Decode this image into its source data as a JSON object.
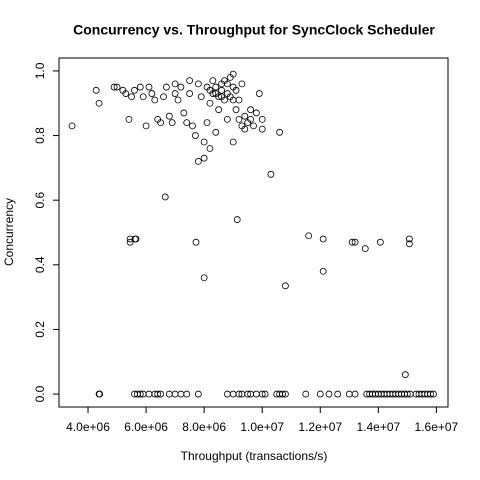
{
  "chart_data": {
    "type": "scatter",
    "title": "Concurrency vs. Throughput for SyncClock Scheduler",
    "x_label": "Throughput (transactions/s)",
    "y_label": "Concurrency",
    "color": "#000000",
    "xlim": [
      3000000.0,
      16400000.0
    ],
    "ylim": [
      -0.04,
      1.04
    ],
    "xticks": [
      {
        "value": 4000000.0,
        "label": "4.0e+06"
      },
      {
        "value": 6000000.0,
        "label": "6.0e+06"
      },
      {
        "value": 8000000.0,
        "label": "8.0e+06"
      },
      {
        "value": 10000000.0,
        "label": "1.0e+07"
      },
      {
        "value": 12000000.0,
        "label": "1.2e+07"
      },
      {
        "value": 14000000.0,
        "label": "1.4e+07"
      },
      {
        "value": 16000000.0,
        "label": "1.6e+07"
      }
    ],
    "yticks": [
      {
        "value": 0,
        "label": "0.0"
      },
      0.2,
      0.4,
      0.6,
      0.8,
      {
        "value": 1,
        "label": "1.0"
      }
    ],
    "x": [
      3450000.0,
      4280000.0,
      4380000.0,
      4380000.0,
      5410000.0,
      5450000.0,
      5450000.0,
      5620000.0,
      5650000.0,
      6660000.0,
      7720000.0,
      8000000.0,
      9140000.0,
      10300000.0,
      10600000.0,
      10800000.0,
      11600000.0,
      12100000.0,
      12100000.0,
      13100000.0,
      13200000.0,
      13550000.0,
      14070000.0,
      15070000.0,
      15070000.0,
      14930000.0,
      4900000.0,
      5000000.0,
      5200000.0,
      5300000.0,
      5500000.0,
      5600000.0,
      5800000.0,
      5900000.0,
      6000000.0,
      6100000.0,
      6200000.0,
      6300000.0,
      6400000.0,
      6500000.0,
      6600000.0,
      6700000.0,
      6800000.0,
      6900000.0,
      7000000.0,
      7000000.0,
      7100000.0,
      7200000.0,
      7300000.0,
      7400000.0,
      7500000.0,
      7500000.0,
      7600000.0,
      7700000.0,
      7800000.0,
      7800000.0,
      7900000.0,
      8000000.0,
      8000000.0,
      8100000.0,
      8100000.0,
      8200000.0,
      8200000.0,
      8300000.0,
      8300000.0,
      8400000.0,
      8400000.0,
      8500000.0,
      8500000.0,
      8600000.0,
      8600000.0,
      8700000.0,
      8700000.0,
      8800000.0,
      8800000.0,
      8900000.0,
      8900000.0,
      9000000.0,
      9000000.0,
      9000000.0,
      9100000.0,
      9100000.0,
      9200000.0,
      9200000.0,
      9300000.0,
      9300000.0,
      9400000.0,
      9500000.0,
      9600000.0,
      9700000.0,
      9800000.0,
      9900000.0,
      10000000.0,
      10000000.0,
      8400000.0,
      8600000.0,
      8800000.0,
      9000000.0,
      8200000.0,
      9400000.0,
      9600000.0,
      4400000.0,
      5600000.0,
      5700000.0,
      5800000.0,
      5900000.0,
      6100000.0,
      6300000.0,
      6400000.0,
      6500000.0,
      6800000.0,
      7000000.0,
      7200000.0,
      7400000.0,
      7800000.0,
      8800000.0,
      9000000.0,
      9200000.0,
      9300000.0,
      9500000.0,
      9600000.0,
      9800000.0,
      10000000.0,
      10100000.0,
      10500000.0,
      10600000.0,
      10700000.0,
      10800000.0,
      11500000.0,
      12000000.0,
      12300000.0,
      12600000.0,
      13000000.0,
      13200000.0,
      13600000.0,
      13700000.0,
      13800000.0,
      13900000.0,
      14000000.0,
      14100000.0,
      14200000.0,
      14300000.0,
      14400000.0,
      14500000.0,
      14600000.0,
      14700000.0,
      14800000.0,
      14900000.0,
      15000000.0,
      15100000.0,
      15300000.0,
      15400000.0,
      15500000.0,
      15600000.0,
      15700000.0,
      15800000.0,
      15900000.0
    ],
    "values": [
      0.83,
      0.94,
      0.9,
      0,
      0.85,
      0.48,
      0.47,
      0.48,
      0.48,
      0.61,
      0.47,
      0.36,
      0.54,
      0.68,
      0.81,
      0.335,
      0.49,
      0.48,
      0.38,
      0.47,
      0.47,
      0.45,
      0.47,
      0.48,
      0.465,
      0.06,
      0.95,
      0.95,
      0.94,
      0.93,
      0.92,
      0.94,
      0.95,
      0.92,
      0.83,
      0.95,
      0.93,
      0.91,
      0.85,
      0.84,
      0.92,
      0.95,
      0.86,
      0.84,
      0.96,
      0.93,
      0.91,
      0.95,
      0.87,
      0.84,
      0.97,
      0.93,
      0.83,
      0.8,
      0.72,
      0.96,
      0.92,
      0.73,
      0.78,
      0.84,
      0.95,
      0.76,
      0.9,
      0.93,
      0.97,
      0.81,
      0.95,
      0.92,
      0.88,
      0.96,
      0.94,
      0.91,
      0.97,
      0.93,
      0.85,
      0.98,
      0.92,
      0.95,
      0.99,
      0.78,
      0.88,
      0.94,
      0.85,
      0.91,
      0.83,
      0.96,
      0.86,
      0.84,
      0.85,
      0.83,
      0.87,
      0.93,
      0.82,
      0.85,
      0.93,
      0.92,
      0.96,
      0.91,
      0.94,
      0.82,
      0.88,
      0,
      0,
      0,
      0,
      0,
      0,
      0,
      0,
      0,
      0,
      0,
      0,
      0,
      0,
      0,
      0,
      0,
      0,
      0,
      0,
      0,
      0,
      0,
      0,
      0,
      0,
      0,
      0,
      0,
      0,
      0,
      0,
      0,
      0,
      0,
      0,
      0,
      0,
      0,
      0,
      0,
      0,
      0,
      0,
      0,
      0,
      0,
      0,
      0,
      0,
      0,
      0,
      0,
      0,
      0,
      0
    ]
  }
}
